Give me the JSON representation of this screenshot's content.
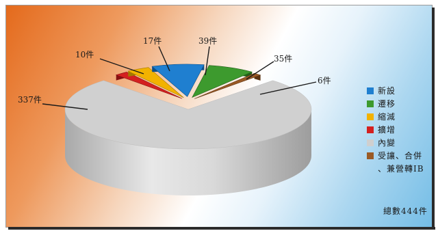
{
  "chart_data": {
    "type": "pie",
    "title": "",
    "categories": [
      "新設",
      "遷移",
      "縮減",
      "擴增",
      "內變",
      "受讓、合併\n、兼營轉IB"
    ],
    "values": [
      39,
      35,
      17,
      10,
      337,
      6
    ],
    "data_labels": [
      "39件",
      "35件",
      "17件",
      "10件",
      "337件",
      "6件"
    ],
    "colors": [
      "#1f7fd0",
      "#3d9a2e",
      "#f2b200",
      "#d42020",
      "#cfcfcf",
      "#9a5a25"
    ],
    "side_colors": [
      "#0f4f86",
      "#245f1a",
      "#a47900",
      "#861111",
      "#a8a8a8",
      "#5b3312"
    ],
    "legend_position": "right",
    "exploded": [
      "新設",
      "遷移",
      "縮減",
      "擴增",
      "受讓、合併\n、兼營轉IB"
    ]
  },
  "legend": {
    "items": [
      "新設",
      "遷移",
      "縮減",
      "擴增",
      "內變",
      "受讓、合併\n、兼營轉IB"
    ]
  },
  "total_label": "總數444件"
}
